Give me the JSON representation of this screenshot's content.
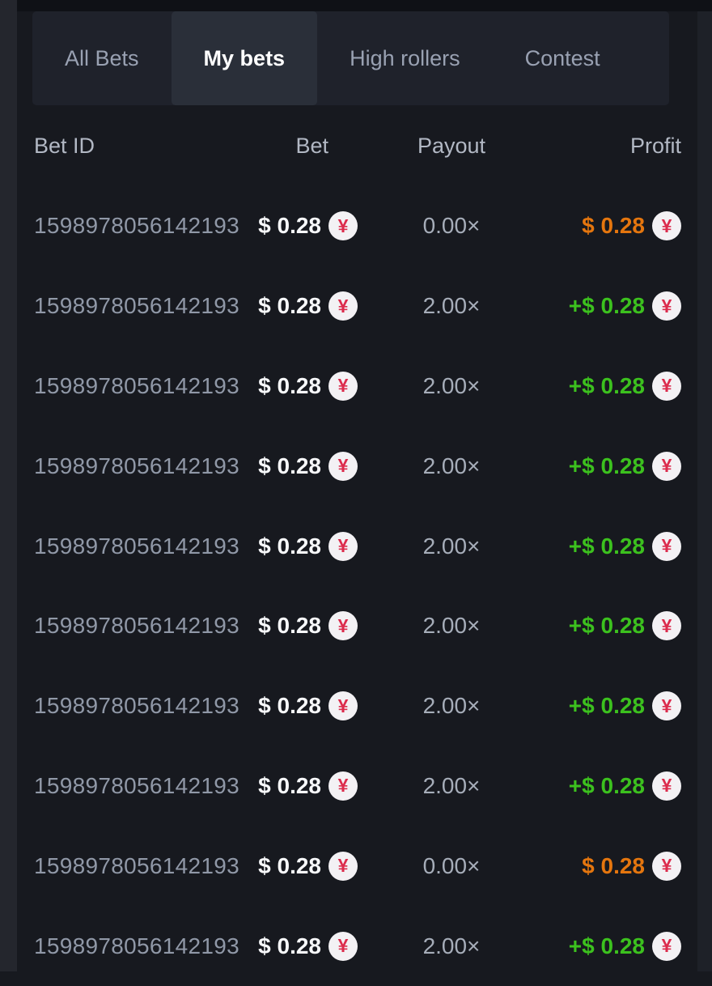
{
  "tabs": {
    "items": [
      {
        "label": "All Bets",
        "active": false
      },
      {
        "label": "My bets",
        "active": true
      },
      {
        "label": "High rollers",
        "active": false
      },
      {
        "label": "Contest",
        "active": false
      }
    ]
  },
  "table": {
    "headers": {
      "bet_id": "Bet ID",
      "bet": "Bet",
      "payout": "Payout",
      "profit": "Profit"
    },
    "rows": [
      {
        "id": "1598978056142193",
        "bet": "$ 0.28",
        "payout": "0.00×",
        "profit": "$ 0.28",
        "profit_type": "loss"
      },
      {
        "id": "1598978056142193",
        "bet": "$ 0.28",
        "payout": "2.00×",
        "profit": "+$ 0.28",
        "profit_type": "win"
      },
      {
        "id": "1598978056142193",
        "bet": "$ 0.28",
        "payout": "2.00×",
        "profit": "+$ 0.28",
        "profit_type": "win"
      },
      {
        "id": "1598978056142193",
        "bet": "$ 0.28",
        "payout": "2.00×",
        "profit": "+$ 0.28",
        "profit_type": "win"
      },
      {
        "id": "1598978056142193",
        "bet": "$ 0.28",
        "payout": "2.00×",
        "profit": "+$ 0.28",
        "profit_type": "win"
      },
      {
        "id": "1598978056142193",
        "bet": "$ 0.28",
        "payout": "2.00×",
        "profit": "+$ 0.28",
        "profit_type": "win"
      },
      {
        "id": "1598978056142193",
        "bet": "$ 0.28",
        "payout": "2.00×",
        "profit": "+$ 0.28",
        "profit_type": "win"
      },
      {
        "id": "1598978056142193",
        "bet": "$ 0.28",
        "payout": "2.00×",
        "profit": "+$ 0.28",
        "profit_type": "win"
      },
      {
        "id": "1598978056142193",
        "bet": "$ 0.28",
        "payout": "0.00×",
        "profit": "$ 0.28",
        "profit_type": "loss"
      },
      {
        "id": "1598978056142193",
        "bet": "$ 0.28",
        "payout": "2.00×",
        "profit": "+$ 0.28",
        "profit_type": "win"
      }
    ]
  },
  "icons": {
    "currency": {
      "name": "cny-coin-icon",
      "symbol": "¥"
    }
  },
  "colors": {
    "background": "#17191f",
    "tabbar_background": "#1f222b",
    "active_tab_background": "#2a2f39",
    "profit_win": "#3cc11e",
    "profit_loss": "#e5760e",
    "coin_background": "#f3f1f4",
    "coin_symbol": "#dc2b4c",
    "bet_text": "#f7f8fa",
    "muted_text": "#9098a7"
  }
}
